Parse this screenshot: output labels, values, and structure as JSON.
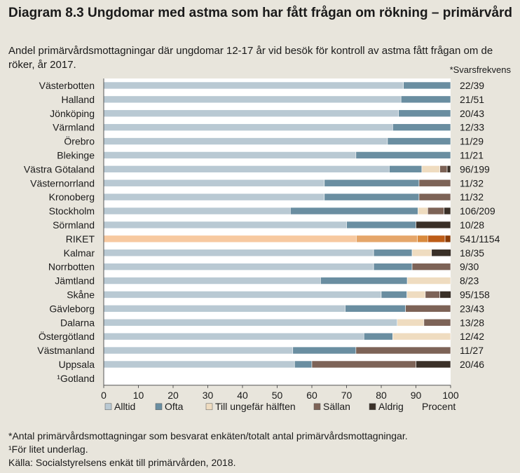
{
  "chart_data": {
    "type": "bar",
    "orientation": "horizontal",
    "stacked": true,
    "title": "Diagram 8.3 Ungdomar med astma som har fått frågan om rökning – primärvård",
    "subtitle": "Andel primärvårdsmottagningar där ungdomar 12-17 år vid besök för kontroll av astma fått frågan om de röker, år 2017.",
    "response_rate_header": "*Svarsfrekvens",
    "xlabel": "Procent",
    "xlim": [
      0,
      100
    ],
    "xticks": [
      0,
      10,
      20,
      30,
      40,
      50,
      60,
      70,
      80,
      90,
      100
    ],
    "grid": false,
    "legend_position": "bottom",
    "categories": [
      "Västerbotten",
      "Halland",
      "Jönköping",
      "Värmland",
      "Örebro",
      "Blekinge",
      "Västra Götaland",
      "Västernorrland",
      "Kronoberg",
      "Stockholm",
      "Sörmland",
      "RIKET",
      "Kalmar",
      "Norrbotten",
      "Jämtland",
      "Skåne",
      "Gävleborg",
      "Dalarna",
      "Östergötland",
      "Västmanland",
      "Uppsala",
      "¹Gotland"
    ],
    "response_rates": [
      "22/39",
      "21/51",
      "20/43",
      "12/33",
      "11/29",
      "11/21",
      "96/199",
      "11/32",
      "11/32",
      "106/209",
      "10/28",
      "541/1154",
      "18/35",
      "9/30",
      "8/23",
      "95/158",
      "23/43",
      "13/28",
      "12/42",
      "11/27",
      "20/46",
      ""
    ],
    "highlight_category": "RIKET",
    "series": [
      {
        "name": "Alltid",
        "color": "#b9c9d3",
        "highlight_color": "#f7c9a0",
        "values": [
          86.4,
          85.7,
          85.0,
          83.3,
          81.8,
          72.7,
          82.3,
          63.6,
          63.6,
          53.8,
          70.0,
          72.8,
          77.8,
          77.8,
          62.5,
          80.0,
          69.6,
          84.6,
          75.0,
          54.5,
          55.0,
          null
        ]
      },
      {
        "name": "Ofta",
        "color": "#6a8ea1",
        "highlight_color": "#e5a66a",
        "values": [
          13.6,
          14.3,
          15.0,
          16.7,
          18.2,
          27.3,
          9.4,
          27.3,
          27.3,
          36.8,
          20.0,
          17.6,
          11.1,
          11.1,
          25.0,
          7.4,
          17.4,
          0,
          8.3,
          18.2,
          5.0,
          null
        ]
      },
      {
        "name": "Till ungefär hälften",
        "color": "#efdcc0",
        "highlight_color": "#d98a3e",
        "values": [
          0,
          0,
          0,
          0,
          0,
          0,
          5.2,
          0,
          0,
          2.8,
          0,
          3.0,
          5.6,
          0,
          12.5,
          5.3,
          0,
          7.7,
          16.7,
          0,
          0,
          null
        ]
      },
      {
        "name": "Sällan",
        "color": "#7d6357",
        "highlight_color": "#bd5d19",
        "values": [
          0,
          0,
          0,
          0,
          0,
          0,
          2.1,
          9.1,
          9.1,
          4.7,
          0,
          5.0,
          0,
          11.1,
          0,
          4.2,
          13.0,
          7.7,
          0,
          27.3,
          30.0,
          null
        ]
      },
      {
        "name": "Aldrig",
        "color": "#3a3028",
        "highlight_color": "#8a3c08",
        "values": [
          0,
          0,
          0,
          0,
          0,
          0,
          1.0,
          0,
          0,
          1.9,
          10.0,
          1.6,
          5.6,
          0,
          0,
          3.2,
          0,
          0,
          0,
          0,
          10.0,
          null
        ]
      }
    ]
  },
  "footnotes": {
    "note1": "*Antal primärvårdsmottagningar som besvarat enkäten/totalt antal primärvårdsmottagningar.",
    "note2": "¹För litet underlag.",
    "source": "Källa:  Socialstyrelsens enkät till primärvården, 2018."
  }
}
